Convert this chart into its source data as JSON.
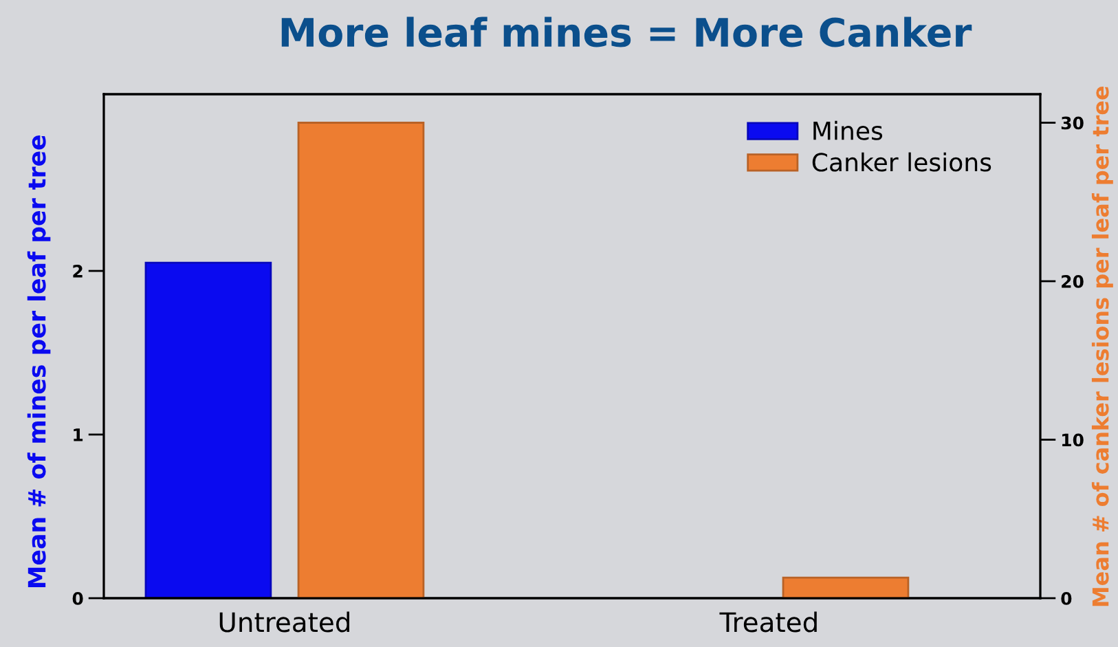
{
  "chart_data": {
    "type": "bar",
    "title": "More leaf mines = More Canker",
    "categories": [
      "Untreated",
      "Treated"
    ],
    "series": [
      {
        "name": "Mines",
        "color": "#0a0af0",
        "values": [
          2.05,
          null
        ]
      },
      {
        "name": "Canker lesions",
        "color": "#ed7d31",
        "values": [
          30,
          1.3
        ],
        "axis": "y2"
      }
    ],
    "ylabel": "Mean # of mines per leaf per tree",
    "y2label": "Mean # of canker lesions per leaf per tree",
    "ylim": [
      0,
      3.08
    ],
    "yticks": [
      0,
      1,
      2
    ],
    "y2lim": [
      0,
      31.8
    ],
    "y2ticks": [
      0,
      10,
      20,
      30
    ],
    "legend": "top right"
  }
}
